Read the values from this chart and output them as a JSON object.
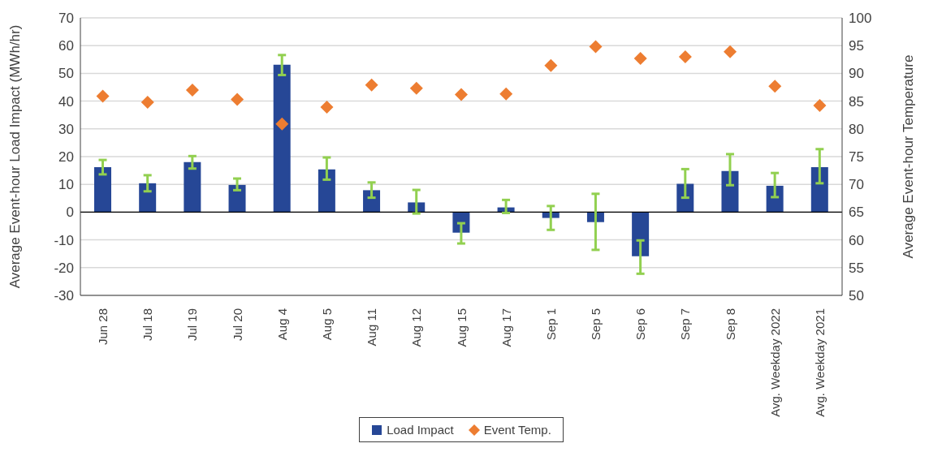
{
  "chart_data": {
    "type": "bar",
    "categories": [
      "Jun 28",
      "Jul 18",
      "Jul 19",
      "Jul 20",
      "Aug 4",
      "Aug 5",
      "Aug 11",
      "Aug 12",
      "Aug 15",
      "Aug 17",
      "Sep 1",
      "Sep 5",
      "Sep 6",
      "Sep 7",
      "Sep 8",
      "Avg. Weekday 2022",
      "Avg. Weekday 2021"
    ],
    "series": [
      {
        "name": "Load Impact",
        "color": "#264796",
        "values": [
          16.2,
          10.4,
          18.0,
          9.8,
          53.1,
          15.4,
          7.9,
          3.5,
          -7.4,
          1.7,
          -2.1,
          -3.6,
          -15.9,
          10.2,
          14.8,
          9.5,
          16.2
        ],
        "errors": [
          [
            13.6,
            18.8
          ],
          [
            7.5,
            13.3
          ],
          [
            15.7,
            20.2
          ],
          [
            7.9,
            12.1
          ],
          [
            49.4,
            56.6
          ],
          [
            11.7,
            19.7
          ],
          [
            5.2,
            10.7
          ],
          [
            -0.5,
            8.0
          ],
          [
            -11.3,
            -4.0
          ],
          [
            -0.3,
            4.4
          ],
          [
            -6.4,
            2.2
          ],
          [
            -13.6,
            6.6
          ],
          [
            -22.2,
            -10.2
          ],
          [
            5.2,
            15.5
          ],
          [
            9.7,
            20.9
          ],
          [
            5.4,
            14.1
          ],
          [
            10.4,
            22.7
          ]
        ]
      },
      {
        "name": "Event Temp.",
        "type": "scatter",
        "axis": "y2",
        "marker": "diamond",
        "color": "#ed7d31",
        "values": [
          85.9,
          84.8,
          87.0,
          85.3,
          80.9,
          83.9,
          87.9,
          87.3,
          86.2,
          86.3,
          91.4,
          94.8,
          92.7,
          93.0,
          93.9,
          87.7,
          84.2
        ]
      }
    ],
    "ylabel": "Average Event-hour Load Impact (MWh/hr)",
    "y2label": "Average Event-hour Temperature",
    "ylim": [
      -30,
      70
    ],
    "yticks": [
      -30,
      -20,
      -10,
      0,
      10,
      20,
      30,
      40,
      50,
      60,
      70
    ],
    "y2lim": [
      50,
      100
    ],
    "y2ticks": [
      50,
      55,
      60,
      65,
      70,
      75,
      80,
      85,
      90,
      95,
      100
    ],
    "grid": "y",
    "legend": "bottom"
  }
}
